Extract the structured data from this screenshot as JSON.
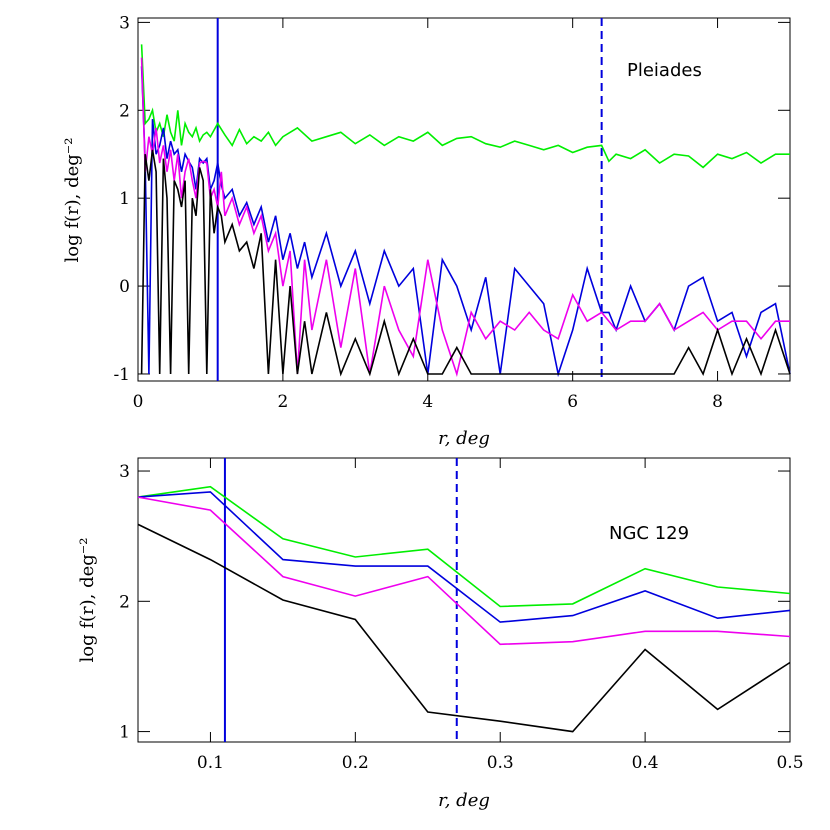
{
  "chart_data": [
    {
      "type": "line",
      "annotation": "Pleiades",
      "xlabel": "r,  deg",
      "ylabel": "log f(r), deg⁻²",
      "xlim": [
        0,
        9
      ],
      "ylim": [
        -1.08,
        3.05
      ],
      "xticks": [
        0,
        2,
        4,
        6,
        8
      ],
      "yticks": [
        -1,
        0,
        1,
        2,
        3
      ],
      "vlines": [
        {
          "x": 1.1,
          "style": "solid",
          "color": "#0000dd"
        },
        {
          "x": 6.4,
          "style": "dashed",
          "color": "#0000dd"
        }
      ],
      "series": [
        {
          "color": "#00ee00",
          "x": [
            0.05,
            0.1,
            0.15,
            0.2,
            0.25,
            0.3,
            0.35,
            0.4,
            0.45,
            0.5,
            0.55,
            0.6,
            0.65,
            0.7,
            0.75,
            0.8,
            0.85,
            0.9,
            0.95,
            1.0,
            1.1,
            1.2,
            1.3,
            1.4,
            1.5,
            1.6,
            1.7,
            1.8,
            1.9,
            2.0,
            2.2,
            2.4,
            2.6,
            2.8,
            3.0,
            3.2,
            3.4,
            3.6,
            3.8,
            4.0,
            4.2,
            4.4,
            4.6,
            4.8,
            5.0,
            5.2,
            5.4,
            5.6,
            5.8,
            6.0,
            6.2,
            6.4,
            6.5,
            6.6,
            6.8,
            7.0,
            7.2,
            7.4,
            7.6,
            7.8,
            8.0,
            8.2,
            8.4,
            8.6,
            8.8,
            9.0
          ],
          "y": [
            2.75,
            1.85,
            1.9,
            2.0,
            1.75,
            1.85,
            1.7,
            1.95,
            1.75,
            1.65,
            2.0,
            1.6,
            1.85,
            1.75,
            1.7,
            1.8,
            1.65,
            1.72,
            1.75,
            1.7,
            1.85,
            1.72,
            1.6,
            1.78,
            1.62,
            1.7,
            1.65,
            1.75,
            1.6,
            1.7,
            1.8,
            1.65,
            1.7,
            1.75,
            1.62,
            1.72,
            1.6,
            1.7,
            1.65,
            1.75,
            1.6,
            1.68,
            1.7,
            1.62,
            1.58,
            1.65,
            1.6,
            1.55,
            1.6,
            1.52,
            1.58,
            1.6,
            1.42,
            1.5,
            1.45,
            1.55,
            1.4,
            1.5,
            1.48,
            1.35,
            1.5,
            1.45,
            1.52,
            1.4,
            1.5,
            1.5
          ]
        },
        {
          "color": "#0000dd",
          "x": [
            0.05,
            0.1,
            0.15,
            0.2,
            0.25,
            0.3,
            0.35,
            0.4,
            0.45,
            0.5,
            0.55,
            0.6,
            0.65,
            0.7,
            0.75,
            0.8,
            0.85,
            0.9,
            0.95,
            1.0,
            1.05,
            1.1,
            1.15,
            1.2,
            1.3,
            1.4,
            1.5,
            1.6,
            1.7,
            1.8,
            1.9,
            2.0,
            2.1,
            2.2,
            2.3,
            2.4,
            2.6,
            2.8,
            3.0,
            3.2,
            3.4,
            3.6,
            3.8,
            4.0,
            4.2,
            4.4,
            4.6,
            4.8,
            5.0,
            5.2,
            5.4,
            5.6,
            5.8,
            6.0,
            6.2,
            6.4,
            6.5,
            6.6,
            6.8,
            7.0,
            7.2,
            7.4,
            7.6,
            7.8,
            8.0,
            8.2,
            8.4,
            8.6,
            8.8,
            9.0
          ],
          "y": [
            2.5,
            1.4,
            -1.0,
            1.9,
            1.5,
            1.6,
            1.8,
            1.45,
            1.65,
            1.5,
            1.55,
            1.3,
            1.5,
            1.42,
            1.35,
            1.1,
            1.45,
            1.4,
            1.45,
            1.1,
            1.2,
            1.4,
            1.15,
            1.0,
            1.1,
            0.8,
            0.95,
            0.7,
            0.9,
            0.5,
            0.8,
            0.3,
            0.6,
            0.2,
            0.5,
            0.1,
            0.6,
            0.0,
            0.4,
            -0.2,
            0.4,
            0.0,
            0.2,
            -1.0,
            0.3,
            0.0,
            -0.5,
            0.1,
            -1.0,
            0.2,
            0.0,
            -0.2,
            -1.0,
            -0.5,
            0.2,
            -0.3,
            -0.3,
            -0.5,
            0.0,
            -0.4,
            -0.2,
            -0.5,
            0.0,
            0.1,
            -0.4,
            -0.3,
            -0.8,
            -0.3,
            -0.2,
            -1.0
          ]
        },
        {
          "color": "#ee00ee",
          "x": [
            0.05,
            0.1,
            0.15,
            0.2,
            0.25,
            0.3,
            0.35,
            0.4,
            0.45,
            0.5,
            0.55,
            0.6,
            0.65,
            0.7,
            0.75,
            0.8,
            0.85,
            0.9,
            0.95,
            1.0,
            1.05,
            1.1,
            1.15,
            1.2,
            1.3,
            1.4,
            1.5,
            1.6,
            1.7,
            1.8,
            1.9,
            2.0,
            2.1,
            2.2,
            2.3,
            2.4,
            2.6,
            2.8,
            3.0,
            3.2,
            3.4,
            3.6,
            3.8,
            4.0,
            4.2,
            4.4,
            4.6,
            4.8,
            5.0,
            5.2,
            5.4,
            5.6,
            5.8,
            6.0,
            6.2,
            6.4,
            6.6,
            6.8,
            7.0,
            7.2,
            7.4,
            7.6,
            7.8,
            8.0,
            8.2,
            8.4,
            8.6,
            8.8,
            9.0
          ],
          "y": [
            2.6,
            1.3,
            1.7,
            1.5,
            1.8,
            1.4,
            1.6,
            1.3,
            1.55,
            1.2,
            1.5,
            1.0,
            1.3,
            1.45,
            1.2,
            1.0,
            1.4,
            1.42,
            1.4,
            1.0,
            1.1,
            0.9,
            1.3,
            0.8,
            1.0,
            0.7,
            0.9,
            0.6,
            0.8,
            0.4,
            0.6,
            0.0,
            0.4,
            -1.0,
            0.3,
            -0.5,
            0.3,
            -0.7,
            0.2,
            -1.0,
            0.0,
            -0.5,
            -0.8,
            0.3,
            -0.5,
            -1.0,
            -0.3,
            -0.6,
            -0.4,
            -0.5,
            -0.3,
            -0.5,
            -0.6,
            -0.1,
            -0.4,
            -0.3,
            -0.5,
            -0.4,
            -0.4,
            -0.2,
            -0.5,
            -0.4,
            -0.3,
            -0.5,
            -0.4,
            -0.4,
            -0.6,
            -0.4,
            -0.4
          ]
        },
        {
          "color": "#000000",
          "x": [
            0.05,
            0.1,
            0.15,
            0.2,
            0.25,
            0.3,
            0.35,
            0.4,
            0.45,
            0.5,
            0.55,
            0.6,
            0.65,
            0.7,
            0.75,
            0.8,
            0.85,
            0.9,
            0.95,
            1.0,
            1.05,
            1.1,
            1.15,
            1.2,
            1.3,
            1.4,
            1.5,
            1.6,
            1.7,
            1.8,
            1.9,
            2.0,
            2.1,
            2.2,
            2.3,
            2.4,
            2.6,
            2.8,
            3.0,
            3.2,
            3.4,
            3.6,
            3.8,
            4.0,
            4.2,
            4.4,
            4.6,
            4.8,
            5.0,
            5.2,
            5.4,
            5.6,
            5.8,
            6.0,
            6.2,
            6.4,
            6.6,
            6.8,
            7.0,
            7.2,
            7.4,
            7.6,
            7.8,
            8.0,
            8.2,
            8.4,
            8.6,
            8.8,
            9.0
          ],
          "y": [
            -1.0,
            1.5,
            1.2,
            1.55,
            1.3,
            -1.0,
            1.45,
            1.0,
            -1.0,
            1.2,
            1.1,
            0.9,
            1.2,
            -1.0,
            1.0,
            0.8,
            1.35,
            1.2,
            -1.0,
            1.1,
            0.6,
            0.9,
            0.8,
            0.5,
            0.7,
            0.4,
            0.5,
            0.2,
            0.6,
            -1.0,
            0.3,
            -1.0,
            0.0,
            -1.0,
            -0.4,
            -1.0,
            -0.3,
            -1.0,
            -0.6,
            -1.0,
            -0.4,
            -1.0,
            -0.6,
            -1.0,
            -1.0,
            -0.7,
            -1.0,
            -1.0,
            -1.0,
            -1.0,
            -1.0,
            -1.0,
            -1.0,
            -1.0,
            -1.0,
            -1.0,
            -1.0,
            -1.0,
            -1.0,
            -1.0,
            -1.0,
            -0.7,
            -1.0,
            -0.5,
            -1.0,
            -0.6,
            -1.0,
            -0.5,
            -1.0
          ]
        }
      ]
    },
    {
      "type": "line",
      "annotation": "NGC 129",
      "xlabel": "r,  deg",
      "ylabel": "log f(r), deg⁻²",
      "xlim": [
        0.05,
        0.5
      ],
      "ylim": [
        0.92,
        3.1
      ],
      "xticks": [
        0.1,
        0.2,
        0.3,
        0.4,
        0.5
      ],
      "ytick_values": [
        1,
        2,
        3
      ],
      "vlines": [
        {
          "x": 0.11,
          "style": "solid",
          "color": "#0000dd"
        },
        {
          "x": 0.27,
          "style": "dashed",
          "color": "#0000dd"
        }
      ],
      "series": [
        {
          "color": "#00ee00",
          "x": [
            0.05,
            0.1,
            0.15,
            0.2,
            0.25,
            0.3,
            0.35,
            0.4,
            0.45,
            0.5
          ],
          "y": [
            2.8,
            2.88,
            2.48,
            2.34,
            2.4,
            1.96,
            1.98,
            2.25,
            2.11,
            2.06
          ]
        },
        {
          "color": "#0000dd",
          "x": [
            0.05,
            0.1,
            0.15,
            0.2,
            0.25,
            0.3,
            0.35,
            0.4,
            0.45,
            0.5
          ],
          "y": [
            2.8,
            2.84,
            2.32,
            2.27,
            2.27,
            1.84,
            1.89,
            2.08,
            1.87,
            1.93
          ]
        },
        {
          "color": "#ee00ee",
          "x": [
            0.05,
            0.1,
            0.15,
            0.2,
            0.25,
            0.3,
            0.35,
            0.4,
            0.45,
            0.5
          ],
          "y": [
            2.8,
            2.7,
            2.19,
            2.04,
            2.19,
            1.67,
            1.69,
            1.77,
            1.77,
            1.73
          ]
        },
        {
          "color": "#000000",
          "x": [
            0.05,
            0.1,
            0.15,
            0.2,
            0.25,
            0.3,
            0.35,
            0.4,
            0.45,
            0.5
          ],
          "y": [
            2.59,
            2.32,
            2.01,
            1.86,
            1.15,
            1.08,
            1.0,
            1.63,
            1.17,
            1.53
          ]
        }
      ]
    }
  ]
}
